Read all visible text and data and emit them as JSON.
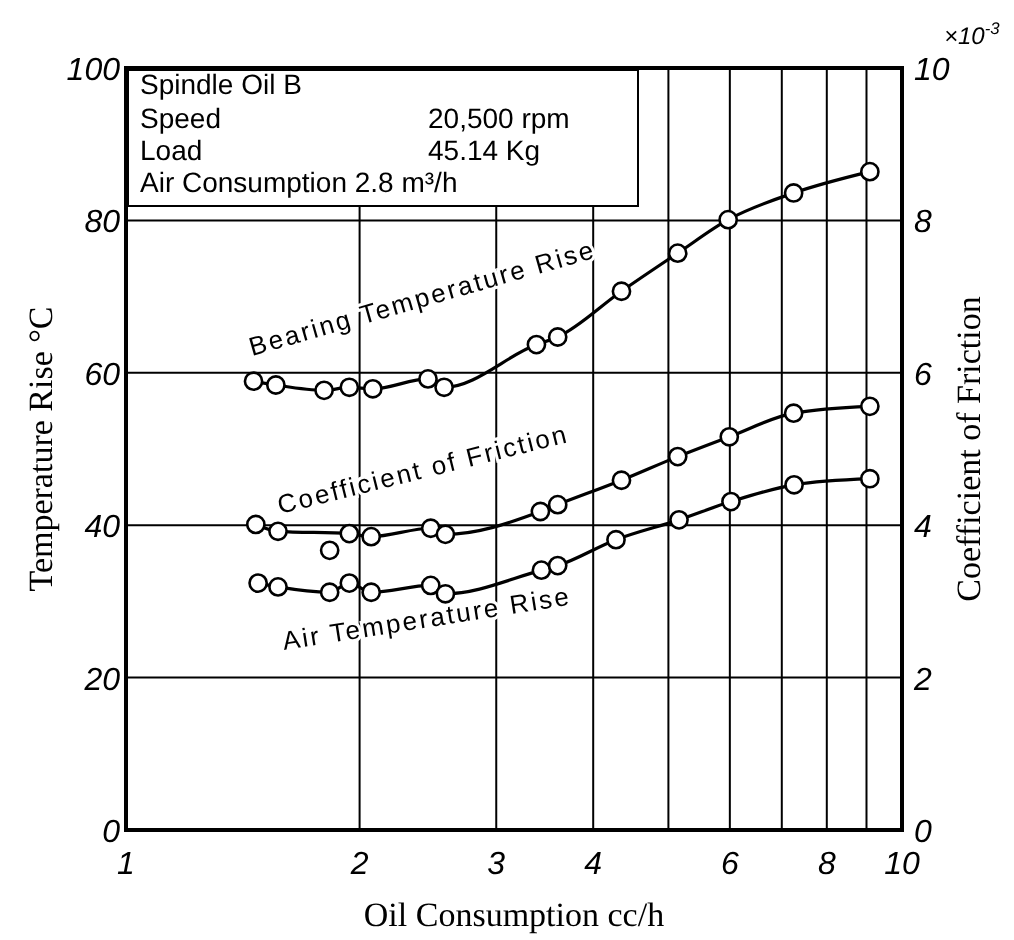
{
  "chart_data": {
    "type": "line",
    "xlabel": "Oil Consumption cc/h",
    "ylabel": "Temperature Rise °C",
    "y2label": "Coefficient of Friction",
    "log": "x",
    "grid": true,
    "legend": false,
    "marker": "circle",
    "line_style": "solid",
    "xlim": [
      1,
      10
    ],
    "xticks": [
      1,
      2,
      3,
      4,
      {
        "value": 5,
        "label": null
      },
      6,
      {
        "value": 7,
        "label": null
      },
      8,
      {
        "value": 9,
        "label": null
      },
      10
    ],
    "ylim": [
      0,
      100
    ],
    "yticks": [
      0,
      20,
      40,
      60,
      80,
      100
    ],
    "y2lim": [
      0,
      10
    ],
    "y2ticks": [
      0,
      2,
      4,
      6,
      8,
      10
    ],
    "annotations": [
      "Spindle Oil B",
      "Speed",
      "20,500 rpm",
      "Load",
      "45.14 Kg",
      "Air Consumption 2.8 m³/h",
      "×10$^{-3}$"
    ],
    "series": [
      {
        "name": "Bearing Temperature Rise",
        "color": "#000000",
        "x": [
          1.46,
          1.56,
          1.8,
          1.94,
          2.08,
          2.45,
          2.57,
          3.38,
          3.6,
          4.35,
          5.14,
          5.97,
          7.25,
          9.09
        ],
        "values": [
          58.9,
          58.4,
          57.7,
          58.1,
          57.9,
          59.2,
          58.1,
          63.7,
          64.7,
          70.7,
          75.7,
          80.1,
          83.6,
          86.4
        ]
      },
      {
        "name": "Coefficient of Friction",
        "color": "#000000",
        "axis": "y2",
        "x": [
          1.47,
          1.57,
          1.94,
          2.07,
          2.47,
          2.58,
          3.42,
          3.6,
          4.35,
          5.14,
          5.99,
          7.25,
          9.09
        ],
        "values": [
          4.01,
          3.92,
          3.89,
          3.85,
          3.96,
          3.88,
          4.18,
          4.27,
          4.59,
          4.9,
          5.16,
          5.47,
          5.56
        ]
      },
      {
        "type": "scatter",
        "color": "#000000",
        "axis": "y2",
        "x": [
          1.83
        ],
        "values": [
          3.67
        ]
      },
      {
        "name": "Air Temperature Rise",
        "color": "#000000",
        "x": [
          1.48,
          1.57,
          1.83,
          1.94,
          2.07,
          2.47,
          2.58,
          3.43,
          3.6,
          4.28,
          5.16,
          6.02,
          7.26,
          9.09
        ],
        "values": [
          32.4,
          31.9,
          31.2,
          32.4,
          31.2,
          32.1,
          31.0,
          34.1,
          34.7,
          38.1,
          40.7,
          43.1,
          45.3,
          46.1
        ]
      }
    ]
  }
}
